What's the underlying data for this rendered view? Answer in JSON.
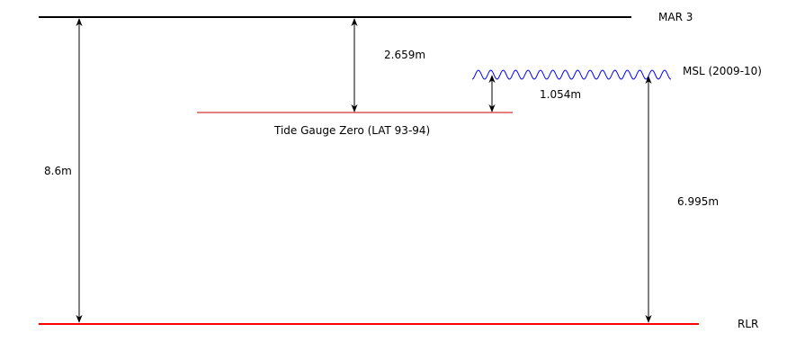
{
  "diagram": {
    "levels": {
      "mar3": {
        "label": "MAR 3",
        "color": "#000000"
      },
      "msl": {
        "label": "MSL (2009-10)",
        "color": "#0000ff"
      },
      "tide_gauge_zero": {
        "label": "Tide Gauge Zero (LAT 93-94)",
        "color": "#cc0000"
      },
      "rlr": {
        "label": "RLR",
        "color": "#ff0000"
      }
    },
    "distances": {
      "mar3_to_rlr": "8.6m",
      "mar3_to_tide_gauge_zero": "2.659m",
      "tide_gauge_zero_to_msl": "1.054m",
      "rlr_to_msl": "6.995m"
    }
  }
}
